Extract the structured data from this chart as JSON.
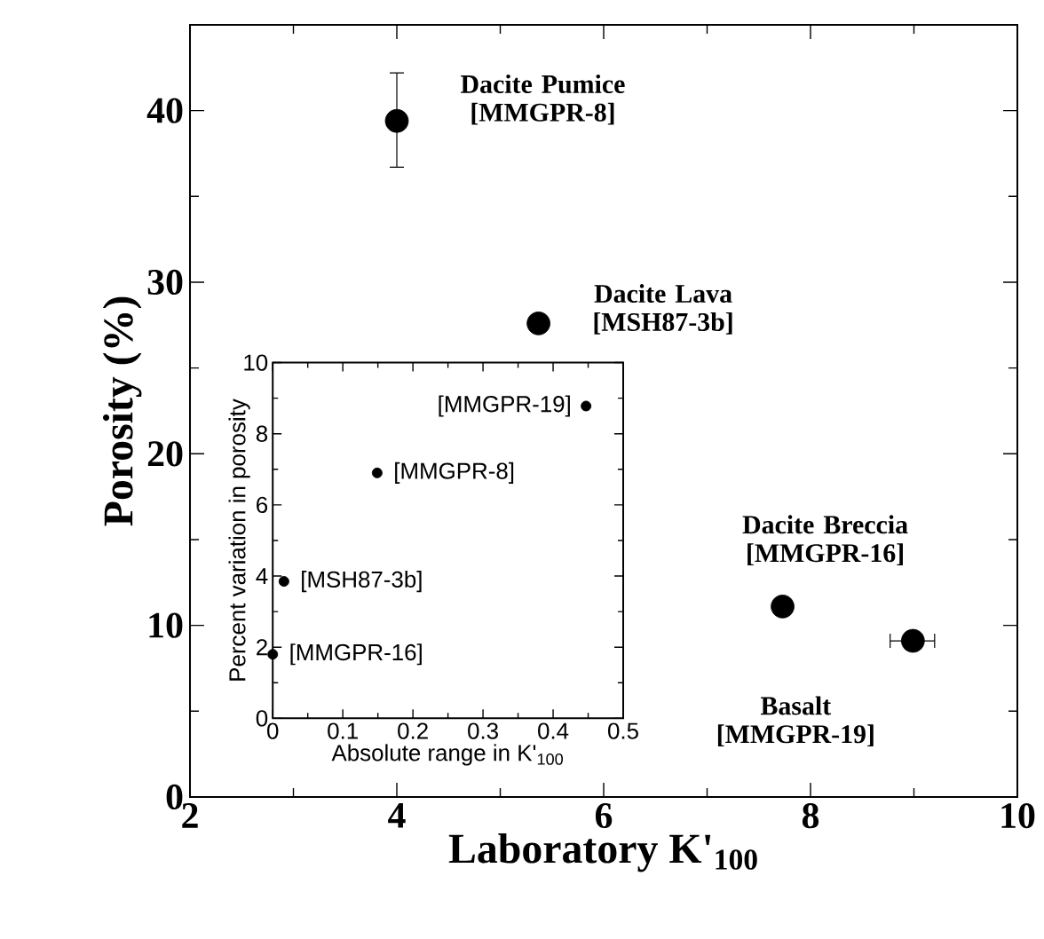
{
  "chart_data": [
    {
      "type": "scatter",
      "xlabel": "Laboratory K'$_{100}$",
      "ylabel": "Porosity (%)",
      "marker": "circle",
      "xlim": [
        2,
        10
      ],
      "ylim": [
        0,
        45
      ],
      "xticks": [
        2,
        {
          "value": 3,
          "label": null
        },
        4,
        {
          "value": 5,
          "label": null
        },
        6,
        {
          "value": 7,
          "label": null
        },
        8,
        {
          "value": 9,
          "label": null
        },
        10
      ],
      "yticks": [
        0,
        {
          "value": 5,
          "label": null
        },
        10,
        {
          "value": 15,
          "label": null
        },
        20,
        {
          "value": 25,
          "label": null
        },
        30,
        {
          "value": 35,
          "label": null
        },
        40,
        {
          "value": 45,
          "label": null
        }
      ],
      "series": [
        {
          "color": "#000000",
          "x": [
            4.0,
            5.37,
            7.73,
            8.99
          ],
          "values": [
            39.4,
            27.6,
            11.1,
            9.1
          ],
          "errors": [
            [
              36.7,
              42.2
            ],
            null,
            null,
            null
          ],
          "xerrors": [
            null,
            null,
            null,
            [
              8.77,
              9.2
            ]
          ]
        }
      ],
      "annotations": [
        {
          "text": "**Dacite Pumice [MMGPR-8]**",
          "x": 4.0,
          "y": 39.4
        },
        {
          "text": "**Dacite Lava [MSH87-3b]**",
          "x": 5.37,
          "y": 27.6
        },
        {
          "text": "**Dacite Breccia [MMGPR-16]**",
          "x": 7.73,
          "y": 11.1
        },
        {
          "text": "**Basalt [MMGPR-19]**",
          "x": 8.99,
          "y": 9.1
        }
      ]
    },
    {
      "type": "scatter",
      "xlabel": "Absolute range in K'$_{100}$",
      "ylabel": "Percent variation in porosity",
      "marker": "circle",
      "xlim": [
        0,
        0.5
      ],
      "ylim": [
        0,
        10
      ],
      "xticks": [
        0,
        {
          "value": 0.05,
          "label": null
        },
        0.1,
        {
          "value": 0.15,
          "label": null
        },
        0.2,
        {
          "value": 0.25,
          "label": null
        },
        0.3,
        {
          "value": 0.35,
          "label": null
        },
        0.4,
        {
          "value": 0.45,
          "label": null
        },
        0.5
      ],
      "yticks": [
        0,
        {
          "value": 1,
          "label": null
        },
        2,
        {
          "value": 3,
          "label": null
        },
        4,
        {
          "value": 5,
          "label": null
        },
        6,
        {
          "value": 7,
          "label": null
        },
        8,
        {
          "value": 9,
          "label": null
        },
        10
      ],
      "series": [
        {
          "color": "#000000",
          "x": [
            0.447,
            0.149,
            0.016,
            0.0
          ],
          "values": [
            8.78,
            6.9,
            3.85,
            1.8
          ]
        }
      ],
      "annotations": [
        {
          "text": "[MMGPR-19]",
          "x": 0.447,
          "y": 8.78
        },
        {
          "text": "[MMGPR-8]",
          "x": 0.149,
          "y": 6.9
        },
        {
          "text": "[MSH87-3b]",
          "x": 0.016,
          "y": 3.85
        },
        {
          "text": "[MMGPR-16]",
          "x": 0.0,
          "y": 1.8
        }
      ]
    }
  ]
}
